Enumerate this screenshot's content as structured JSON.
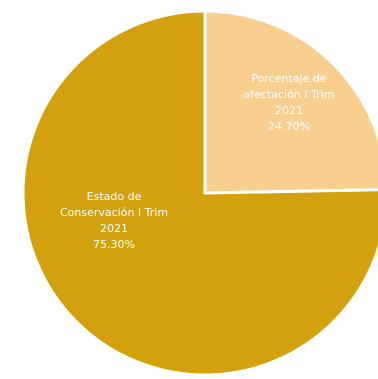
{
  "chart_data": {
    "type": "pie",
    "slices": [
      {
        "label_lines": [
          "Porcentaje de",
          "afectación I Trim",
          "2021"
        ],
        "value": 24.7,
        "value_label": "24.70%",
        "color": "#F9CF8F"
      },
      {
        "label_lines": [
          "Estado de",
          "Conservación I Trim",
          "2021"
        ],
        "value": 75.3,
        "value_label": "75.30%",
        "color": "#D4A10E"
      }
    ],
    "start_angle_deg": 0,
    "direction": "clockwise",
    "legend": "none",
    "separator_color": "#ffffff"
  }
}
